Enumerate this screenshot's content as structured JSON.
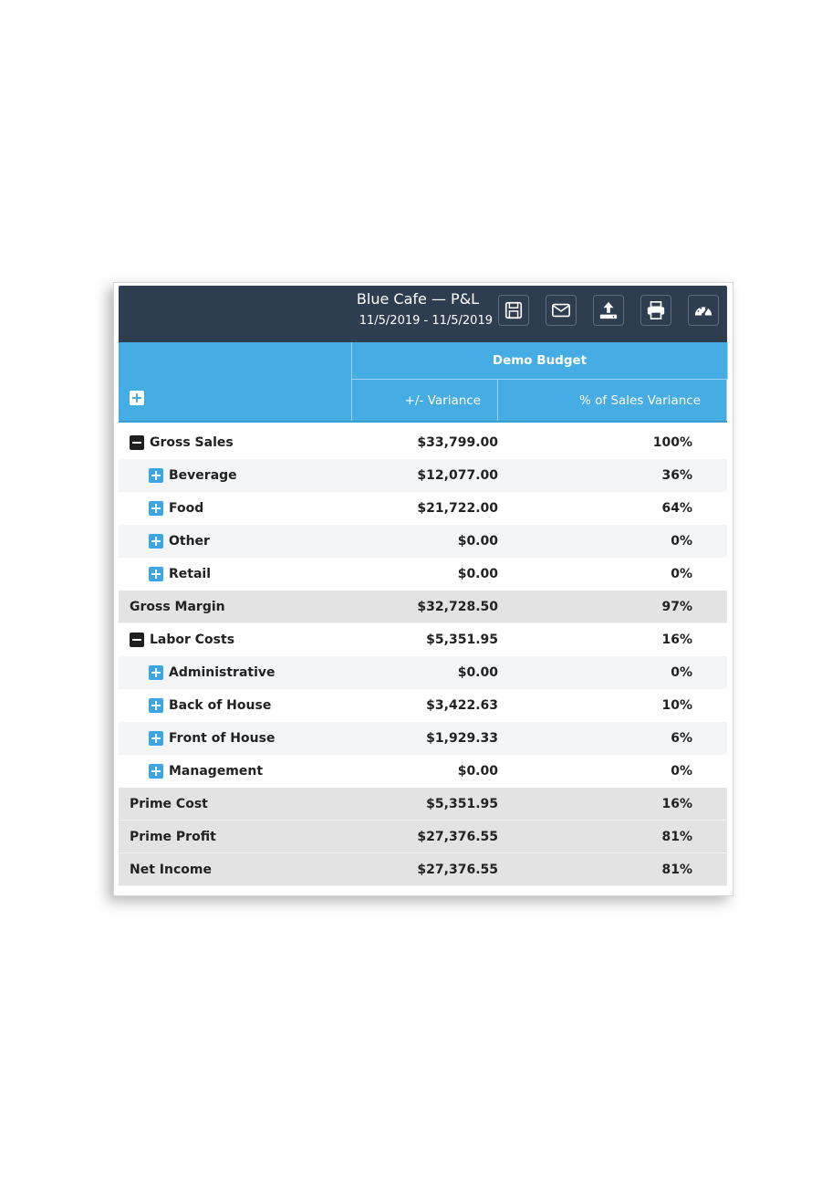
{
  "header": {
    "title": "Blue Cafe — P&L",
    "date_range": "11/5/2019 - 11/5/2019",
    "icons": [
      "save-icon",
      "email-icon",
      "upload-icon",
      "print-icon",
      "dashboard-icon"
    ]
  },
  "columns": {
    "group": "Demo Budget",
    "variance": "+/- Variance",
    "pct_sales_variance": "% of Sales Variance"
  },
  "rows": [
    {
      "label": "Gross Sales",
      "amount": "$33,799.00",
      "pct": "100%",
      "type": "section",
      "toggle": "collapse"
    },
    {
      "label": "Beverage",
      "amount": "$12,077.00",
      "pct": "36%",
      "type": "child",
      "toggle": "expand"
    },
    {
      "label": "Food",
      "amount": "$21,722.00",
      "pct": "64%",
      "type": "child",
      "toggle": "expand"
    },
    {
      "label": "Other",
      "amount": "$0.00",
      "pct": "0%",
      "type": "child",
      "toggle": "expand"
    },
    {
      "label": "Retail",
      "amount": "$0.00",
      "pct": "0%",
      "type": "child",
      "toggle": "expand"
    },
    {
      "label": "Gross Margin",
      "amount": "$32,728.50",
      "pct": "97%",
      "type": "total"
    },
    {
      "label": "Labor Costs",
      "amount": "$5,351.95",
      "pct": "16%",
      "type": "section",
      "toggle": "collapse"
    },
    {
      "label": "Administrative",
      "amount": "$0.00",
      "pct": "0%",
      "type": "child",
      "toggle": "expand"
    },
    {
      "label": "Back of House",
      "amount": "$3,422.63",
      "pct": "10%",
      "type": "child",
      "toggle": "expand"
    },
    {
      "label": "Front of House",
      "amount": "$1,929.33",
      "pct": "6%",
      "type": "child",
      "toggle": "expand"
    },
    {
      "label": "Management",
      "amount": "$0.00",
      "pct": "0%",
      "type": "child",
      "toggle": "expand"
    },
    {
      "label": "Prime Cost",
      "amount": "$5,351.95",
      "pct": "16%",
      "type": "total"
    },
    {
      "label": "Prime Profit",
      "amount": "$27,376.55",
      "pct": "81%",
      "type": "total"
    },
    {
      "label": "Net Income",
      "amount": "$27,376.55",
      "pct": "81%",
      "type": "total"
    }
  ],
  "colors": {
    "header_bg": "#2e3d4f",
    "column_header_bg": "#45ace4",
    "total_row_bg": "#e3e3e3",
    "expand_icon": "#3ba6e3"
  }
}
